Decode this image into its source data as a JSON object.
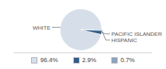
{
  "chart_data": {
    "type": "pie",
    "categories": [
      "WHITE",
      "PACIFIC ISLANDER",
      "HISPANIC"
    ],
    "values": [
      96.4,
      2.9,
      0.7
    ],
    "value_labels": [
      "96.4%",
      "2.9%",
      "0.7%"
    ],
    "colors": [
      "#d6dfe9",
      "#2f5d86",
      "#8ba6be"
    ],
    "legend": "bottom"
  }
}
